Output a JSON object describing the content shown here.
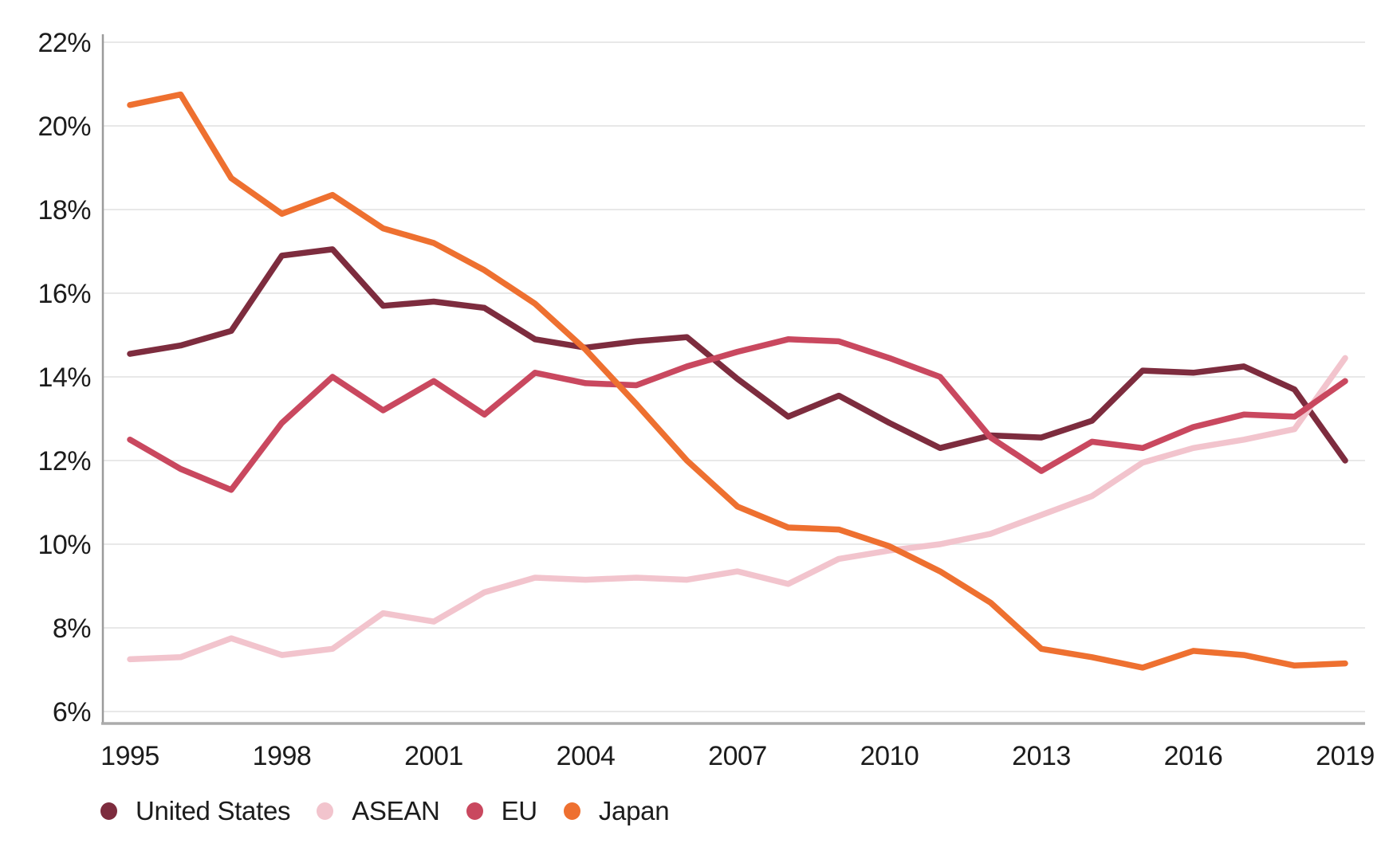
{
  "chart_data": {
    "type": "line",
    "title": "",
    "xlabel": "",
    "ylabel": "",
    "x": [
      1995,
      1996,
      1997,
      1998,
      1999,
      2000,
      2001,
      2002,
      2003,
      2004,
      2005,
      2006,
      2007,
      2008,
      2009,
      2010,
      2011,
      2012,
      2013,
      2014,
      2015,
      2016,
      2017,
      2018,
      2019
    ],
    "x_tick_labels": [
      "1995",
      "1998",
      "2001",
      "2004",
      "2007",
      "2010",
      "2013",
      "2016",
      "2019"
    ],
    "x_tick_years": [
      1995,
      1998,
      2001,
      2004,
      2007,
      2010,
      2013,
      2016,
      2019
    ],
    "y_tick_labels": [
      "6%",
      "8%",
      "10%",
      "12%",
      "14%",
      "16%",
      "18%",
      "20%",
      "22%"
    ],
    "y_tick_values": [
      6,
      8,
      10,
      12,
      14,
      16,
      18,
      20,
      22
    ],
    "ylim": [
      6,
      22
    ],
    "y_unit": "%",
    "grid": "horizontal",
    "grid_color": "#e8e8e8",
    "axis_color": "#a2a2a2",
    "text_color": "#1c1c1c",
    "legend_position": "bottom-left",
    "series": [
      {
        "name": "United States",
        "color": "#7d2c3e",
        "values": [
          14.55,
          14.75,
          15.1,
          16.9,
          17.05,
          15.7,
          15.8,
          15.65,
          14.9,
          14.7,
          14.85,
          14.95,
          13.95,
          13.05,
          13.55,
          12.9,
          12.3,
          12.6,
          12.55,
          12.95,
          14.15,
          14.1,
          14.25,
          13.7,
          12.0
        ]
      },
      {
        "name": "ASEAN",
        "color": "#f2c4cd",
        "values": [
          7.25,
          7.3,
          7.75,
          7.35,
          7.5,
          8.35,
          8.15,
          8.85,
          9.2,
          9.15,
          9.2,
          9.15,
          9.35,
          9.05,
          9.65,
          9.85,
          10.0,
          10.25,
          10.7,
          11.15,
          11.95,
          12.3,
          12.5,
          12.75,
          14.45
        ]
      },
      {
        "name": "EU",
        "color": "#c9485f",
        "values": [
          12.5,
          11.8,
          11.3,
          12.9,
          14.0,
          13.2,
          13.9,
          13.1,
          14.1,
          13.85,
          13.8,
          14.25,
          14.6,
          14.9,
          14.85,
          14.45,
          14.0,
          12.55,
          11.75,
          12.45,
          12.3,
          12.8,
          13.1,
          13.05,
          13.9
        ]
      },
      {
        "name": "Japan",
        "color": "#ee7030",
        "values": [
          20.5,
          20.75,
          18.75,
          17.9,
          18.35,
          17.55,
          17.2,
          16.55,
          15.75,
          14.65,
          13.35,
          12.0,
          10.9,
          10.4,
          10.35,
          9.95,
          9.35,
          8.6,
          7.5,
          7.3,
          7.05,
          7.45,
          7.35,
          7.1,
          7.15
        ]
      }
    ]
  }
}
